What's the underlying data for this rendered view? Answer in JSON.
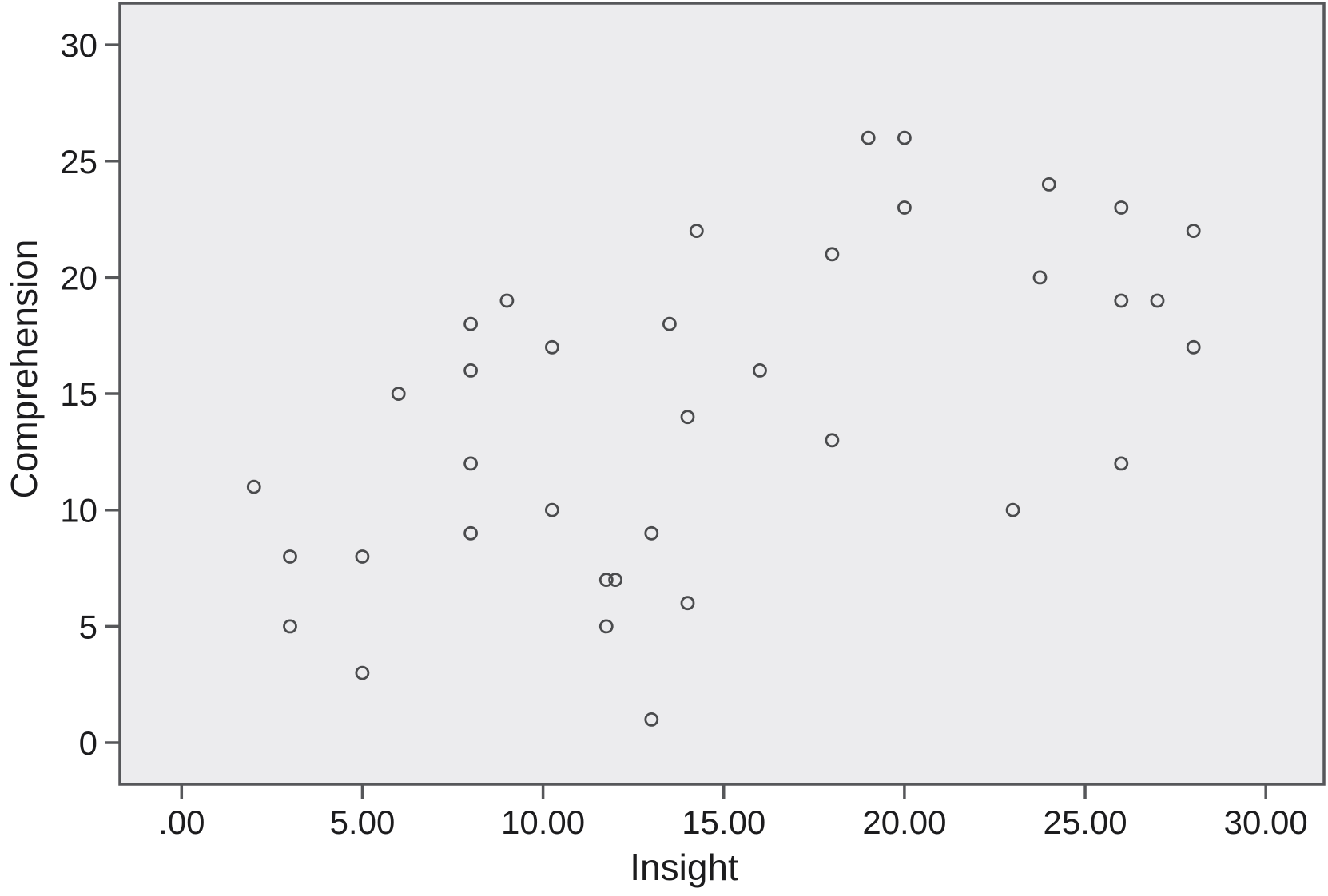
{
  "chart_data": {
    "type": "scatter",
    "title": "",
    "xlabel": "Insight",
    "ylabel": "Comprehension",
    "xlim": [
      -1.7,
      31.6
    ],
    "ylim": [
      -1.8,
      31.8
    ],
    "x_ticks": [
      0,
      5,
      10,
      15,
      20,
      25,
      30
    ],
    "x_tick_labels": [
      ".00",
      "5.00",
      "10.00",
      "15.00",
      "20.00",
      "25.00",
      "30.00"
    ],
    "y_ticks": [
      0,
      5,
      10,
      15,
      20,
      25,
      30
    ],
    "y_tick_labels": [
      "0",
      "5",
      "10",
      "15",
      "20",
      "25",
      "30"
    ],
    "grid": false,
    "legend": "none",
    "marker": "open-circle",
    "points": [
      [
        2,
        11
      ],
      [
        3,
        8
      ],
      [
        3,
        5
      ],
      [
        5,
        8
      ],
      [
        5,
        3
      ],
      [
        6,
        15
      ],
      [
        8,
        18
      ],
      [
        8,
        16
      ],
      [
        8,
        12
      ],
      [
        8,
        9
      ],
      [
        9,
        19
      ],
      [
        10.25,
        17
      ],
      [
        10.25,
        10
      ],
      [
        11.75,
        7
      ],
      [
        12,
        7
      ],
      [
        11.75,
        5
      ],
      [
        13,
        9
      ],
      [
        13,
        1
      ],
      [
        13.5,
        18
      ],
      [
        14.25,
        22
      ],
      [
        14,
        14
      ],
      [
        14,
        6
      ],
      [
        16,
        16
      ],
      [
        18,
        21
      ],
      [
        18,
        13
      ],
      [
        19,
        26
      ],
      [
        20,
        26
      ],
      [
        20,
        23
      ],
      [
        23,
        10
      ],
      [
        23.75,
        20
      ],
      [
        24,
        24
      ],
      [
        26,
        23
      ],
      [
        26,
        19
      ],
      [
        26,
        12
      ],
      [
        27,
        19
      ],
      [
        28,
        22
      ],
      [
        28,
        17
      ]
    ]
  },
  "colors": {
    "plot_background": "#ececee",
    "frame": "#56575a",
    "marker_stroke": "#4a4b4d",
    "text": "#1c1c1e"
  }
}
